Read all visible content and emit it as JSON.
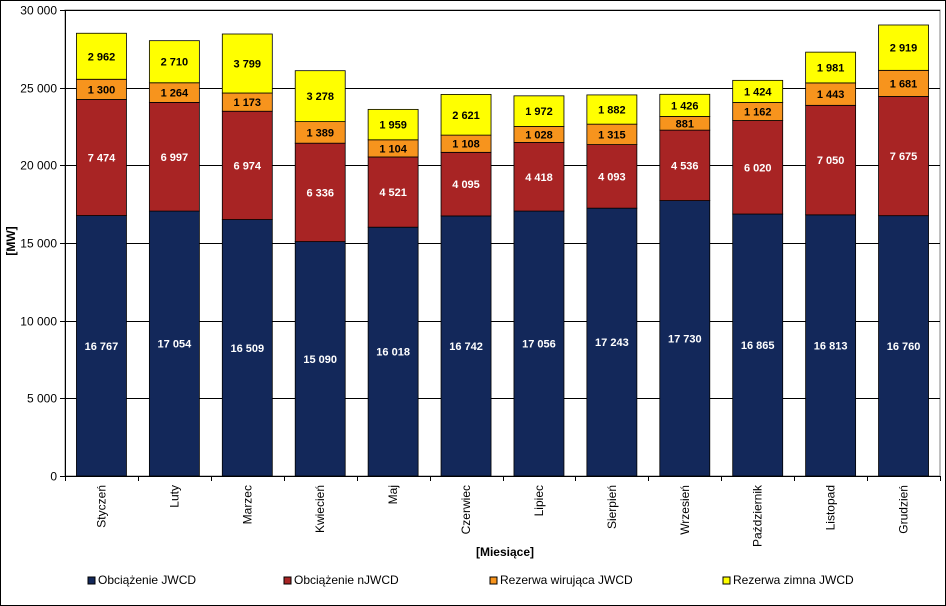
{
  "chart_data": {
    "type": "bar",
    "stacked": true,
    "title": "",
    "xlabel": "[Miesiące]",
    "ylabel": "[MW]",
    "ylim": [
      0,
      30000
    ],
    "yticks": [
      0,
      5000,
      10000,
      15000,
      20000,
      25000,
      30000
    ],
    "ytick_labels": [
      "0",
      "5 000",
      "10 000",
      "15 000",
      "20 000",
      "25 000",
      "30 000"
    ],
    "grid": true,
    "legend_position": "bottom",
    "categories": [
      "Styczeń",
      "Luty",
      "Marzec",
      "Kwiecień",
      "Maj",
      "Czerwiec",
      "Lipiec",
      "Sierpień",
      "Wrzesień",
      "Październik",
      "Listopad",
      "Grudzień"
    ],
    "series": [
      {
        "name": "Obciążenie JWCD",
        "color": "#13285A",
        "label_color": "#FFFFFF",
        "values": [
          16767,
          17054,
          16509,
          15090,
          16018,
          16742,
          17056,
          17243,
          17730,
          16865,
          16813,
          16760
        ],
        "labels": [
          "16 767",
          "17 054",
          "16 509",
          "15 090",
          "16 018",
          "16 742",
          "17 056",
          "17 243",
          "17 730",
          "16 865",
          "16 813",
          "16 760"
        ]
      },
      {
        "name": "Obciążenie nJWCD",
        "color": "#A82424",
        "label_color": "#FFFFFF",
        "values": [
          7474,
          6997,
          6974,
          6336,
          4521,
          4095,
          4418,
          4093,
          4536,
          6020,
          7050,
          7675
        ],
        "labels": [
          "7 474",
          "6 997",
          "6 974",
          "6 336",
          "4 521",
          "4 095",
          "4 418",
          "4 093",
          "4 536",
          "6 020",
          "7 050",
          "7 675"
        ]
      },
      {
        "name": "Rezerwa wirująca JWCD",
        "color": "#F7941D",
        "label_color": "#000000",
        "values": [
          1300,
          1264,
          1173,
          1389,
          1104,
          1108,
          1028,
          1315,
          881,
          1162,
          1443,
          1681
        ],
        "labels": [
          "1 300",
          "1 264",
          "1 173",
          "1 389",
          "1 104",
          "1 108",
          "1 028",
          "1 315",
          "881",
          "1 162",
          "1 443",
          "1 681"
        ]
      },
      {
        "name": "Rezerwa zimna JWCD",
        "color": "#FFFF00",
        "label_color": "#000000",
        "values": [
          2962,
          2710,
          3799,
          3278,
          1959,
          2621,
          1972,
          1882,
          1426,
          1424,
          1981,
          2919
        ],
        "labels": [
          "2 962",
          "2 710",
          "3 799",
          "3 278",
          "1 959",
          "2 621",
          "1 972",
          "1 882",
          "1 426",
          "1 424",
          "1 981",
          "2 919"
        ]
      }
    ]
  }
}
